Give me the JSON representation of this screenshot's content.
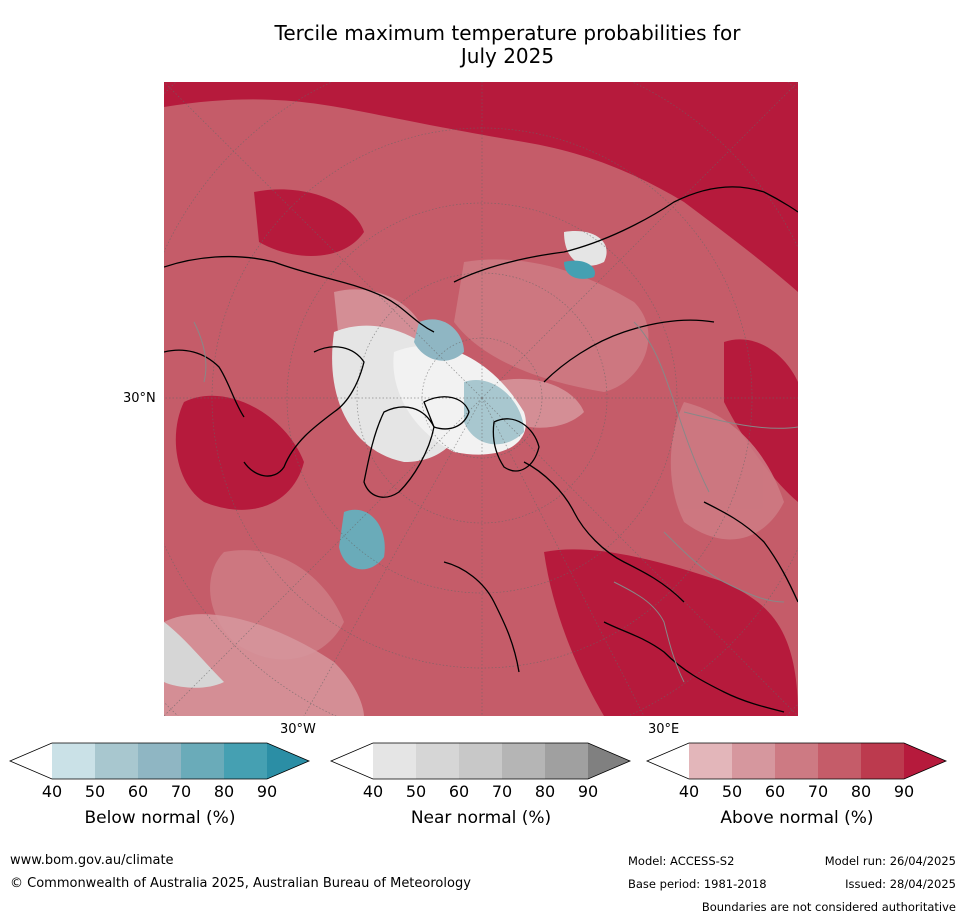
{
  "title_line1": "Tercile maximum temperature probabilities for",
  "title_line2": "July 2025",
  "map": {
    "lat_label": "30°N",
    "lon_label_west": "30°W",
    "lon_label_east": "30°E"
  },
  "legends": [
    {
      "label": "Below normal (%)",
      "ticks": [
        "40",
        "50",
        "60",
        "70",
        "80",
        "90"
      ],
      "colors": [
        "#ffffff",
        "#cae1e7",
        "#a8c7cf",
        "#8fb6c3",
        "#6aabb9",
        "#45a0b2",
        "#2b8ea5"
      ]
    },
    {
      "label": "Near normal (%)",
      "ticks": [
        "40",
        "50",
        "60",
        "70",
        "80",
        "90"
      ],
      "colors": [
        "#ffffff",
        "#e5e5e5",
        "#d6d6d6",
        "#c8c8c8",
        "#b5b5b5",
        "#a0a0a0",
        "#808080"
      ]
    },
    {
      "label": "Above normal (%)",
      "ticks": [
        "40",
        "50",
        "60",
        "70",
        "80",
        "90"
      ],
      "colors": [
        "#ffffff",
        "#e3b6ba",
        "#d6979e",
        "#cd7a83",
        "#c55c69",
        "#bc3a4e",
        "#b61a3c"
      ]
    }
  ],
  "footer": {
    "website": "www.bom.gov.au/climate",
    "copyright": "© Commonwealth of Australia 2025, Australian Bureau of Meteorology",
    "model": "Model: ACCESS-S2",
    "model_run": "Model run: 26/04/2025",
    "base_period": "Base period: 1981-2018",
    "issued": "Issued: 28/04/2025",
    "disclaimer": "Boundaries are not considered authoritative"
  }
}
